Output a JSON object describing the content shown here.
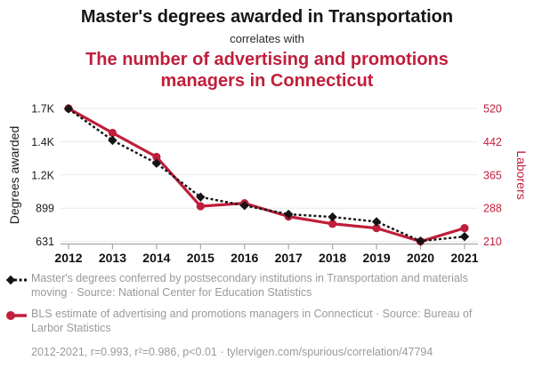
{
  "header": {
    "title": "Master's degrees awarded in Transportation",
    "connector": "correlates with",
    "subtitle": "The number of advertising and promotions managers in Connecticut"
  },
  "colors": {
    "accent_red": "#C01E3B",
    "series_black": "#141414",
    "title_black": "#161616",
    "legend_gray": "#9a9a9a",
    "gridline": "#e9e9e9",
    "axis_line": "#a6a6a6"
  },
  "chart_data": {
    "type": "line",
    "categories": [
      "2012",
      "2013",
      "2014",
      "2015",
      "2016",
      "2017",
      "2018",
      "2019",
      "2020",
      "2021"
    ],
    "series": [
      {
        "name": "Master's degrees awarded in Transportation",
        "axis": "left",
        "style": "dashed-black-diamond",
        "values": [
          1697,
          1412,
          1270,
          1000,
          923,
          850,
          828,
          790,
          634,
          670
        ]
      },
      {
        "name": "Advertising and promotions managers in Connecticut",
        "axis": "right",
        "style": "solid-red-circle",
        "values": [
          520,
          463,
          407,
          292,
          299,
          268,
          251,
          241,
          210,
          241
        ]
      }
    ],
    "left_axis": {
      "label": "Degrees awarded",
      "ticks": [
        1700,
        1400,
        1200,
        899,
        631
      ],
      "tick_labels": [
        "1.7K",
        "1.4K",
        "1.2K",
        "899",
        "631"
      ]
    },
    "right_axis": {
      "label": "Laborers",
      "ticks": [
        520,
        442,
        365,
        288,
        210
      ],
      "tick_labels": [
        "520",
        "442",
        "365",
        "288",
        "210"
      ]
    },
    "grid": true,
    "legend_position": "bottom",
    "x_range": [
      "2012",
      "2021"
    ]
  },
  "legend": [
    {
      "series": "degrees",
      "text": "Master's degrees conferred by postsecondary institutions in Transportation and materials moving · Source: National Center for Education Statistics"
    },
    {
      "series": "laborers",
      "text": "BLS estimate of advertising and promotions managers in Connecticut · Source: Bureau of Larbor Statistics"
    }
  ],
  "footer": "2012-2021, r=0.993, r²=0.986, p<0.01 · tylervigen.com/spurious/correlation/47794"
}
